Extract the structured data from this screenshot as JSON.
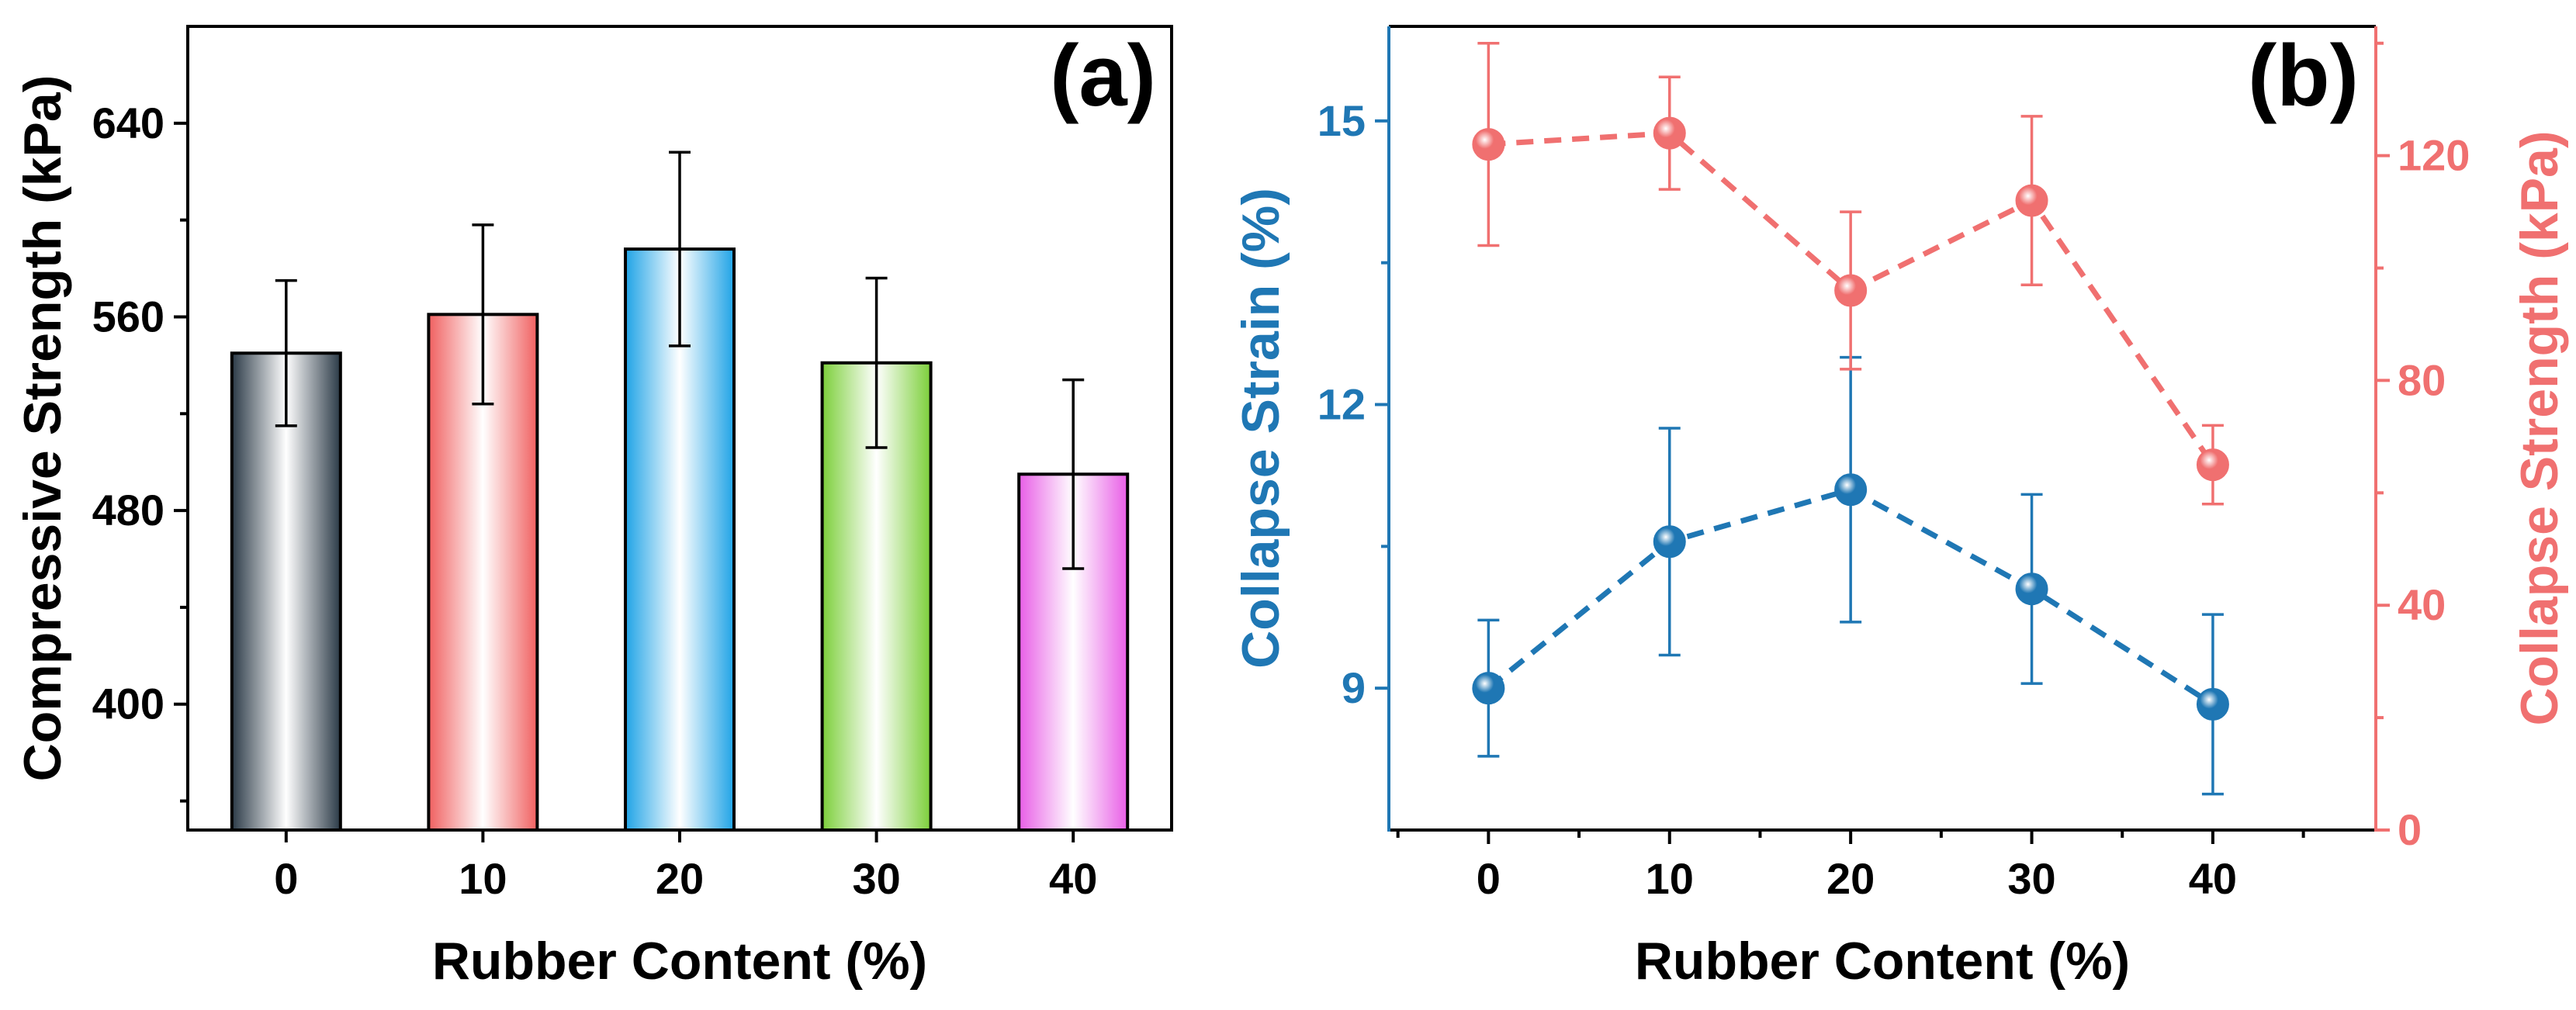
{
  "chart_data": [
    {
      "type": "bar",
      "panel_label": "(a)",
      "xlabel": "Rubber Content (%)",
      "ylabel": "Compressive Strength (kPa)",
      "categories": [
        "0",
        "10",
        "20",
        "30",
        "40"
      ],
      "values": [
        545,
        561,
        588,
        541,
        495
      ],
      "errors": [
        30,
        37,
        40,
        35,
        39
      ],
      "yticks": [
        400,
        480,
        560,
        640
      ],
      "ylim": [
        348,
        680
      ],
      "bar_colors": [
        "#2b3a47",
        "#f06060",
        "#1fa3e6",
        "#7ccf3a",
        "#e85ee6"
      ]
    },
    {
      "type": "line",
      "panel_label": "(b)",
      "xlabel": "Rubber Content (%)",
      "ylabel_left": "Collapse Strain (%)",
      "ylabel_right": "Collapse Strength (kPa)",
      "x": [
        0,
        10,
        20,
        30,
        40
      ],
      "xticks": [
        0,
        10,
        20,
        30,
        40
      ],
      "xlim": [
        -5.5,
        49
      ],
      "series": [
        {
          "name": "Collapse Strain (%)",
          "axis": "left",
          "color": "#1f77b4",
          "values": [
            9.0,
            10.55,
            11.1,
            10.05,
            8.83
          ],
          "errors": [
            0.72,
            1.2,
            1.4,
            1.0,
            0.95
          ]
        },
        {
          "name": "Collapse Strength (kPa)",
          "axis": "right",
          "color": "#f07070",
          "values": [
            122,
            124,
            96,
            112,
            65
          ],
          "errors": [
            18,
            10,
            14,
            15,
            7
          ]
        }
      ],
      "yticks_left": [
        9,
        12,
        15
      ],
      "ylim_left": [
        7.5,
        16.0
      ],
      "yticks_right": [
        0,
        40,
        80,
        120
      ],
      "ylim_right": [
        0,
        143
      ]
    }
  ]
}
